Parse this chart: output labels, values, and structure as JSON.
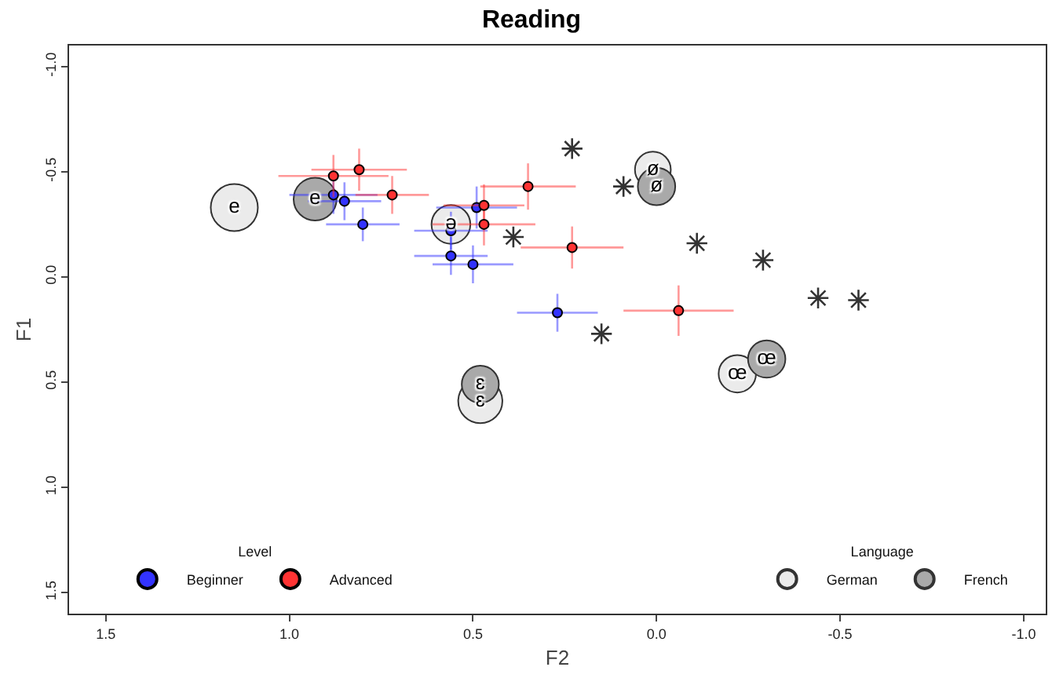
{
  "chart_data": {
    "type": "scatter",
    "title": "Reading",
    "xlabel": "F2",
    "ylabel": "F1",
    "xlim": [
      1.6,
      -1.06
    ],
    "ylim": [
      1.6,
      -1.1
    ],
    "xticks": [
      1.5,
      {
        "value": 1,
        "label": "1.0"
      },
      0.5,
      {
        "value": 0,
        "label": "0.0"
      },
      -0.5,
      {
        "value": -1,
        "label": "-1.0"
      }
    ],
    "yticks": [
      {
        "value": -1,
        "label": "-1.0"
      },
      -0.5,
      {
        "value": 0,
        "label": "0.0"
      },
      0.5,
      {
        "value": 1,
        "label": "1.0"
      },
      1.5
    ],
    "grid": false,
    "legend": "bottom",
    "legend_title": [
      "Level",
      "Language"
    ],
    "marker": "circle",
    "series": [
      {
        "type": "bubble",
        "name": "German",
        "color": "#ebebeb",
        "x": [
          1.15,
          0.56,
          0.01,
          0.48,
          -0.22
        ],
        "values": [
          -0.33,
          -0.25,
          -0.51,
          0.59,
          0.46
        ],
        "sizes": [
          1,
          0.68,
          0.58,
          0.88,
          0.63
        ],
        "value_labels": [
          "e",
          "ə",
          "ø",
          "ɛ",
          "œ"
        ]
      },
      {
        "type": "bubble",
        "name": "French",
        "color": "#a9a9a9",
        "x": [
          0.93,
          0.0,
          0.48,
          -0.3
        ],
        "values": [
          -0.37,
          -0.43,
          0.51,
          0.39
        ],
        "sizes": [
          0.83,
          0.63,
          0.62,
          0.63
        ],
        "value_labels": [
          "e",
          "ø",
          "ɛ",
          "œ"
        ]
      },
      {
        "type": "scatter",
        "name": "Beginner",
        "color": "#3333ff",
        "x": [
          0.88,
          0.85,
          0.8,
          0.49,
          0.56,
          0.56,
          0.5,
          0.27
        ],
        "values": [
          -0.39,
          -0.36,
          -0.25,
          -0.33,
          -0.22,
          -0.1,
          -0.06,
          0.17
        ],
        "xerrors": [
          0.12,
          0.1,
          0.1,
          0.11,
          0.1,
          0.1,
          0.11,
          0.11
        ],
        "errors": [
          0.09,
          0.09,
          0.08,
          0.1,
          0.09,
          0.09,
          0.09,
          0.09
        ]
      },
      {
        "type": "scatter",
        "name": "Advanced",
        "color": "#ff3333",
        "x": [
          0.88,
          0.81,
          0.72,
          0.35,
          0.47,
          0.47,
          0.23,
          -0.06
        ],
        "values": [
          -0.48,
          -0.51,
          -0.39,
          -0.43,
          -0.34,
          -0.25,
          -0.14,
          0.16
        ],
        "xerrors": [
          0.15,
          0.13,
          0.1,
          0.13,
          0.11,
          0.14,
          0.14,
          0.15
        ],
        "errors": [
          0.1,
          0.1,
          0.09,
          0.11,
          0.1,
          0.1,
          0.1,
          0.12
        ]
      },
      {
        "type": "scatter",
        "color": "#333333",
        "marker": "cross",
        "x": [
          0.23,
          0.09,
          0.39,
          -0.11,
          -0.29,
          -0.44,
          -0.55,
          0.15
        ],
        "values": [
          -0.61,
          -0.43,
          -0.19,
          -0.16,
          -0.08,
          0.1,
          0.11,
          0.27
        ]
      }
    ]
  }
}
